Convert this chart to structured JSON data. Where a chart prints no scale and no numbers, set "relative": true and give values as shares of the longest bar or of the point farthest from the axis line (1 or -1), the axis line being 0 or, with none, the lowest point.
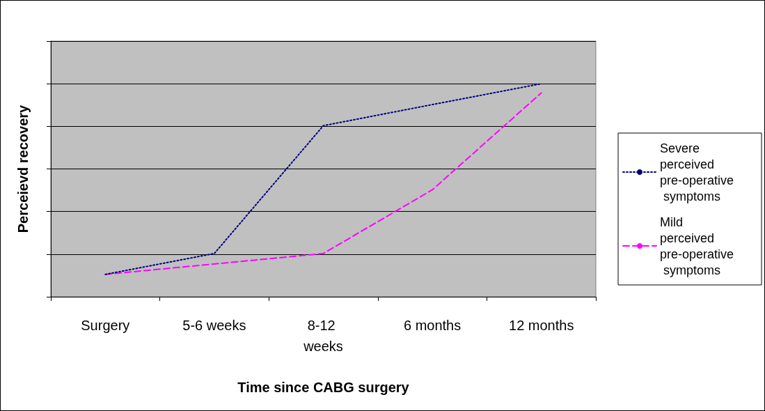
{
  "chart_data": {
    "type": "line",
    "relative": true,
    "xlabel": "Time since CABG surgery",
    "ylabel": "Perceievd recovery",
    "categories": [
      "Surgery",
      "5-6 weeks",
      "8-12 weeks",
      "6 months",
      "12 months"
    ],
    "series": [
      {
        "name": "Severe perceived pre-operative symptoms",
        "color": "#000080",
        "line_style": "dotted",
        "values": [
          0.105,
          0.203,
          0.803,
          0.902,
          1
        ]
      },
      {
        "name": "Mild perceived pre-operative symptoms",
        "color": "#ff00ff",
        "line_style": "dashed",
        "values": [
          0.105,
          0.154,
          0.203,
          0.502,
          0.957
        ]
      }
    ],
    "grid": "y",
    "legend": "right",
    "marker": "none"
  }
}
